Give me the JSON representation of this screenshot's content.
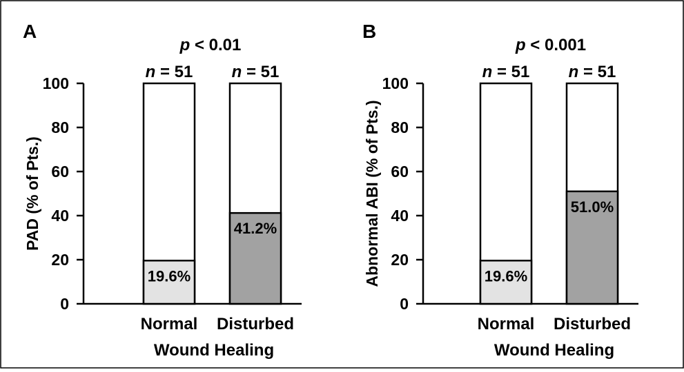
{
  "chart_data": [
    {
      "panel_label": "A",
      "type": "bar",
      "stacked": true,
      "title": "p < 0.01",
      "title_italic_part": "p",
      "title_rest": " < 0.01",
      "ylabel": "PAD (% of Pts.)",
      "xlabel": "Wound Healing",
      "ylim": [
        0,
        100
      ],
      "yticks": [
        0,
        20,
        40,
        60,
        80,
        100
      ],
      "categories": [
        "Normal",
        "Disturbed"
      ],
      "n_labels": [
        {
          "italic": "n",
          "rest": " = 51"
        },
        {
          "italic": "n",
          "rest": " = 51"
        }
      ],
      "values": [
        19.6,
        41.2
      ],
      "value_labels": [
        "19.6%",
        "41.2%"
      ],
      "fill_colors": [
        "#e3e3e3",
        "#a2a2a2"
      ],
      "total": 100
    },
    {
      "panel_label": "B",
      "type": "bar",
      "stacked": true,
      "title": "p < 0.001",
      "title_italic_part": "p",
      "title_rest": " < 0.001",
      "ylabel": "Abnormal ABI (% of Pts.)",
      "xlabel": "Wound Healing",
      "ylim": [
        0,
        100
      ],
      "yticks": [
        0,
        20,
        40,
        60,
        80,
        100
      ],
      "categories": [
        "Normal",
        "Disturbed"
      ],
      "n_labels": [
        {
          "italic": "n",
          "rest": " = 51"
        },
        {
          "italic": "n",
          "rest": " = 51"
        }
      ],
      "values": [
        19.6,
        51.0
      ],
      "value_labels": [
        "19.6%",
        "51.0%"
      ],
      "fill_colors": [
        "#e3e3e3",
        "#a2a2a2"
      ],
      "total": 100
    }
  ],
  "colors": {
    "frame": "#000000",
    "bar_empty": "#ffffff",
    "bar_normal": "#e3e3e3",
    "bar_disturbed": "#a2a2a2"
  }
}
